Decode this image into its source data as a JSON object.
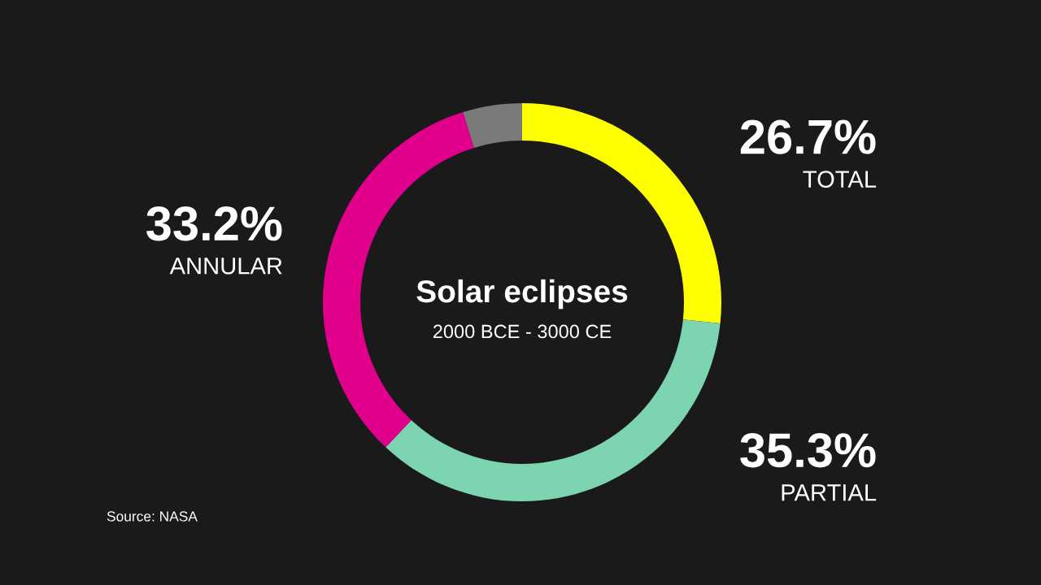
{
  "chart_data": {
    "type": "donut",
    "title": "Solar eclipses",
    "subtitle": "2000 BCE - 3000 CE",
    "categories": [
      "TOTAL",
      "PARTIAL",
      "ANNULAR",
      null
    ],
    "values": [
      26.7,
      35.3,
      33.2,
      4.8
    ],
    "colors": [
      "#ffff00",
      "#7dd4b0",
      "#e0008c",
      "#7a7a7a"
    ],
    "value_labels": [
      "26.7%",
      "35.3%",
      "33.2%",
      null
    ],
    "annotations": [
      "Source: NASA"
    ],
    "legend": false
  }
}
